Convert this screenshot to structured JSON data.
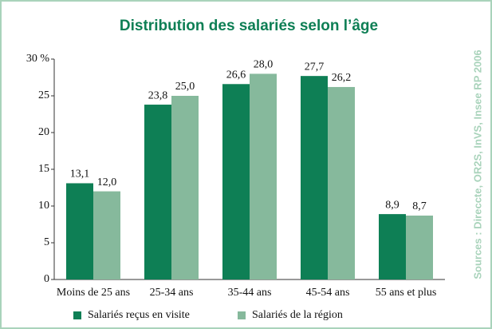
{
  "chart_data": {
    "type": "bar",
    "title": "Distribution des salariés selon l’âge",
    "source": "Sources : Direccte, OR2S, InVS, Insee RP 2006",
    "categories": [
      "Moins de 25 ans",
      "25-34 ans",
      "35-44 ans",
      "45-54 ans",
      "55 ans et plus"
    ],
    "series": [
      {
        "name": "Salariés reçus en visite",
        "color": "#0e7f55",
        "values": [
          13.1,
          23.8,
          26.6,
          27.7,
          8.9
        ],
        "value_labels": [
          "13,1",
          "23,8",
          "26,6",
          "27,7",
          "8,9"
        ]
      },
      {
        "name": "Salariés de la région",
        "color": "#86b99c",
        "values": [
          12.0,
          25.0,
          28.0,
          26.2,
          8.7
        ],
        "value_labels": [
          "12,0",
          "25,0",
          "28,0",
          "26,2",
          "8,7"
        ]
      }
    ],
    "ylim": [
      0,
      30
    ],
    "yticks": [
      0,
      5,
      10,
      15,
      20,
      25,
      {
        "value": 30,
        "label": "30 %"
      }
    ]
  }
}
